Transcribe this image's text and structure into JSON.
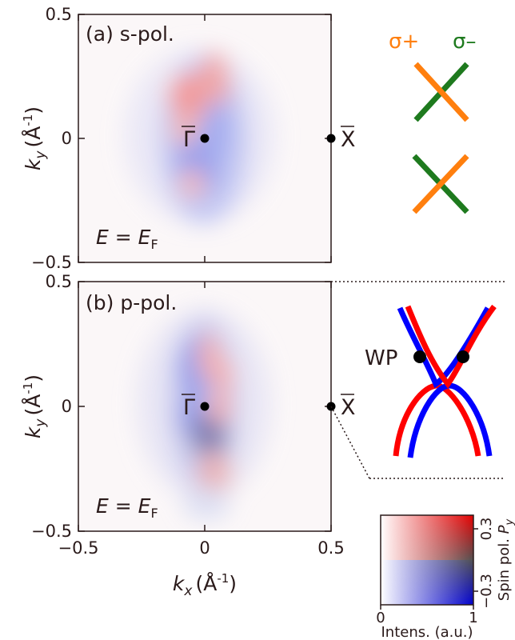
{
  "chart_data": [
    {
      "type": "heatmap",
      "panel": "a",
      "panel_label": "(a) s-pol.",
      "energy_label": {
        "lhs": "E",
        "rhs": "E",
        "sub": "F"
      },
      "xlim": [
        -0.5,
        0.5
      ],
      "ylim": [
        -0.5,
        0.5
      ],
      "y_ticks": [
        "0.5",
        "0",
        "−0.5"
      ],
      "ylabel": {
        "main": "k",
        "sub": "y",
        "unit": "(Å",
        "exp": "-1",
        "close": ")"
      },
      "points": [
        {
          "label": "Γ",
          "x": 0.0,
          "y": 0.0
        },
        {
          "label": "X",
          "x": 0.5,
          "y": 0.0
        }
      ]
    },
    {
      "type": "heatmap",
      "panel": "b",
      "panel_label": "(b) p-pol.",
      "energy_label": {
        "lhs": "E",
        "rhs": "E",
        "sub": "F"
      },
      "xlim": [
        -0.5,
        0.5
      ],
      "ylim": [
        -0.5,
        0.5
      ],
      "x_ticks": [
        "−0.5",
        "0",
        "0.5"
      ],
      "y_ticks": [
        "0.5",
        "0",
        "−0.5"
      ],
      "xlabel": {
        "main": "k",
        "sub": "x",
        "unit": "(Å",
        "exp": "-1",
        "close": ")"
      },
      "ylabel": {
        "main": "k",
        "sub": "y",
        "unit": "(Å",
        "exp": "-1",
        "close": ")"
      },
      "points": [
        {
          "label": "Γ",
          "x": 0.0,
          "y": 0.0
        },
        {
          "label": "X",
          "x": 0.5,
          "y": 0.0
        }
      ]
    }
  ],
  "schematic": {
    "sigma_plus": "σ+",
    "sigma_minus": "σ–",
    "wp_label": "WP",
    "colors": {
      "sigma_plus": "#ff7f0e",
      "sigma_minus": "#1e7a1e",
      "spin_up": "#ff0000",
      "spin_down": "#0000ff"
    }
  },
  "colorbar": {
    "x_ticks": [
      "0",
      "1"
    ],
    "y_ticks": [
      "0.3",
      "−0.3"
    ],
    "xlabel": "Intens. (a.u.)",
    "ylabel": {
      "main": "Spin pol. ",
      "var": "P",
      "sub": "y"
    }
  }
}
